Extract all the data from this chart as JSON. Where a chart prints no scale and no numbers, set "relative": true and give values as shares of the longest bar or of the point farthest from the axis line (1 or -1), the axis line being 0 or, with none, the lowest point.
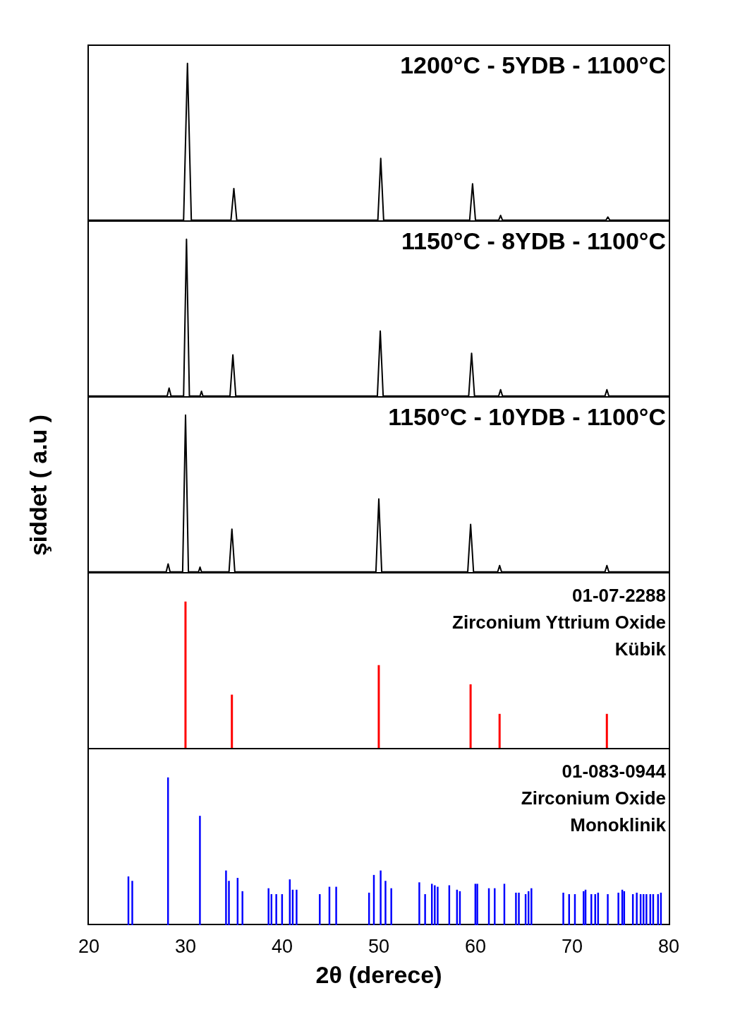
{
  "chart_data": [
    {
      "type": "line",
      "relative": true,
      "title": "1200°C - 5YDB - 1100°C",
      "color": "#000000",
      "xlim": [
        20,
        80
      ],
      "xticks": [
        20,
        30,
        40,
        50,
        60,
        70,
        80
      ],
      "tick_labels": false,
      "x": [
        20,
        29.8,
        30.2,
        30.6,
        34.7,
        35.0,
        35.3,
        49.9,
        50.2,
        50.5,
        59.4,
        59.7,
        60.0,
        62.4,
        62.6,
        62.8,
        73.5,
        73.7,
        73.9,
        80
      ],
      "values": [
        0.01,
        0.01,
        1,
        0.01,
        0.01,
        0.21,
        0.01,
        0.01,
        0.4,
        0.01,
        0.01,
        0.24,
        0.01,
        0.01,
        0.04,
        0.01,
        0.01,
        0.03,
        0.01,
        0.01
      ]
    },
    {
      "type": "line",
      "relative": true,
      "title": "1150°C - 8YDB - 1100°C",
      "color": "#000000",
      "xlim": [
        20,
        80
      ],
      "xticks": [
        20,
        30,
        40,
        50,
        60,
        70,
        80
      ],
      "tick_labels": false,
      "x": [
        20,
        28.1,
        28.3,
        28.5,
        29.8,
        30.1,
        30.4,
        31.5,
        31.65,
        31.8,
        34.6,
        34.9,
        35.2,
        49.85,
        50.15,
        50.45,
        59.3,
        59.6,
        59.9,
        62.4,
        62.6,
        62.8,
        73.4,
        73.6,
        73.8,
        80
      ],
      "values": [
        0.01,
        0.01,
        0.06,
        0.01,
        0.01,
        1,
        0.01,
        0.01,
        0.04,
        0.01,
        0.01,
        0.27,
        0.01,
        0.01,
        0.42,
        0.01,
        0.01,
        0.28,
        0.01,
        0.01,
        0.05,
        0.01,
        0.01,
        0.05,
        0.01,
        0.01
      ]
    },
    {
      "type": "line",
      "relative": true,
      "title": "1150°C - 10YDB - 1100°C",
      "ylabel": "şiddet ( a.u )",
      "color": "#000000",
      "xlim": [
        20,
        80
      ],
      "xticks": [
        20,
        30,
        40,
        50,
        60,
        70,
        80
      ],
      "tick_labels": false,
      "x": [
        20,
        28.0,
        28.2,
        28.4,
        29.7,
        30.0,
        30.3,
        31.35,
        31.5,
        31.65,
        34.5,
        34.8,
        35.1,
        49.7,
        50.0,
        50.3,
        59.2,
        59.5,
        59.8,
        62.3,
        62.5,
        62.7,
        73.4,
        73.6,
        73.8,
        80
      ],
      "values": [
        0.01,
        0.01,
        0.06,
        0.01,
        0.01,
        1,
        0.01,
        0.01,
        0.04,
        0.01,
        0.01,
        0.28,
        0.01,
        0.01,
        0.47,
        0.01,
        0.01,
        0.31,
        0.01,
        0.01,
        0.05,
        0.01,
        0.01,
        0.05,
        0.01,
        0.01
      ]
    },
    {
      "type": "bar",
      "relative": true,
      "annotations": [
        "01-07-2288",
        "Zirconium Yttrium Oxide",
        "Kübik"
      ],
      "color": "#ff0000",
      "xlim": [
        20,
        80
      ],
      "xticks": [
        20,
        30,
        40,
        50,
        60,
        70,
        80
      ],
      "tick_labels": false,
      "x": [
        30.0,
        34.8,
        50.0,
        59.5,
        62.5,
        73.6
      ],
      "values": [
        1,
        0.37,
        0.57,
        0.44,
        0.24,
        0.24
      ]
    },
    {
      "type": "bar",
      "relative": true,
      "annotations": [
        "01-083-0944",
        "Zirconium Oxide",
        "Monoklinik"
      ],
      "xlabel": "2θ (derece)",
      "color": "#0000ff",
      "xlim": [
        20,
        80
      ],
      "xticks": [
        20,
        30,
        40,
        50,
        60,
        70,
        80
      ],
      "tick_labels": "x",
      "x": [
        24.1,
        24.5,
        28.2,
        31.5,
        34.2,
        34.5,
        35.4,
        35.9,
        38.6,
        38.9,
        39.4,
        40.0,
        40.8,
        41.1,
        41.5,
        43.9,
        44.9,
        45.6,
        49.0,
        49.5,
        50.2,
        50.7,
        51.3,
        54.2,
        54.8,
        55.5,
        55.8,
        56.1,
        57.3,
        58.1,
        58.4,
        60.0,
        60.2,
        61.4,
        62.0,
        63.0,
        64.2,
        64.5,
        65.2,
        65.5,
        65.8,
        69.1,
        69.7,
        70.3,
        71.2,
        71.4,
        72.0,
        72.4,
        72.7,
        73.7,
        74.8,
        75.2,
        75.4,
        76.3,
        76.7,
        77.1,
        77.4,
        77.7,
        78.1,
        78.4,
        78.9,
        79.2
      ],
      "values": [
        0.33,
        0.3,
        1,
        0.74,
        0.37,
        0.3,
        0.32,
        0.23,
        0.25,
        0.21,
        0.21,
        0.21,
        0.31,
        0.24,
        0.24,
        0.21,
        0.26,
        0.26,
        0.22,
        0.34,
        0.37,
        0.3,
        0.25,
        0.29,
        0.21,
        0.28,
        0.27,
        0.26,
        0.27,
        0.24,
        0.23,
        0.28,
        0.28,
        0.25,
        0.25,
        0.28,
        0.22,
        0.22,
        0.21,
        0.23,
        0.25,
        0.22,
        0.21,
        0.21,
        0.23,
        0.24,
        0.21,
        0.21,
        0.22,
        0.21,
        0.22,
        0.24,
        0.23,
        0.21,
        0.22,
        0.21,
        0.21,
        0.21,
        0.21,
        0.21,
        0.21,
        0.22
      ]
    }
  ]
}
